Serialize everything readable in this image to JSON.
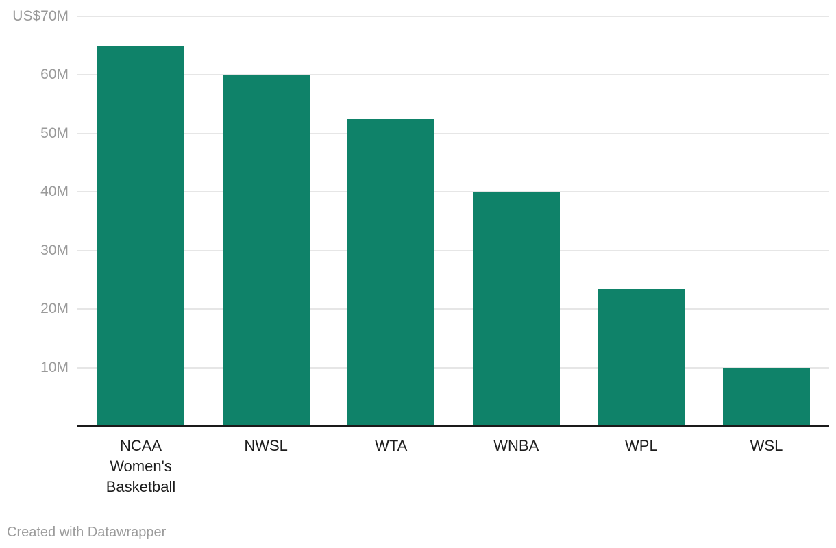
{
  "chart_data": {
    "type": "bar",
    "title": "",
    "categories": [
      "NCAA\nWomen's\nBasketball",
      "NWSL",
      "WTA",
      "WNBA",
      "WPL",
      "WSL"
    ],
    "values": [
      65,
      60,
      52.5,
      40,
      23.4,
      10
    ],
    "unit": "US$ millions",
    "xlabel": "",
    "ylabel": "",
    "ylim": [
      0,
      70
    ],
    "grid": "horizontal",
    "legend": "none",
    "y_ticks": [
      {
        "value": 70,
        "label": "US$70M"
      },
      {
        "value": 60,
        "label": "60M"
      },
      {
        "value": 50,
        "label": "50M"
      },
      {
        "value": 40,
        "label": "40M"
      },
      {
        "value": 30,
        "label": "30M"
      },
      {
        "value": 20,
        "label": "20M"
      },
      {
        "value": 10,
        "label": "10M"
      }
    ],
    "colors": {
      "bar": "#0f8269",
      "gridline": "#e6e6e6",
      "axis_line": "#1a1a1a",
      "tick_label": "#9a9a9a",
      "category_label": "#1d1d1d",
      "footer": "#9b9b9b",
      "background": "#ffffff"
    }
  },
  "footer": {
    "credit": "Created with Datawrapper"
  }
}
